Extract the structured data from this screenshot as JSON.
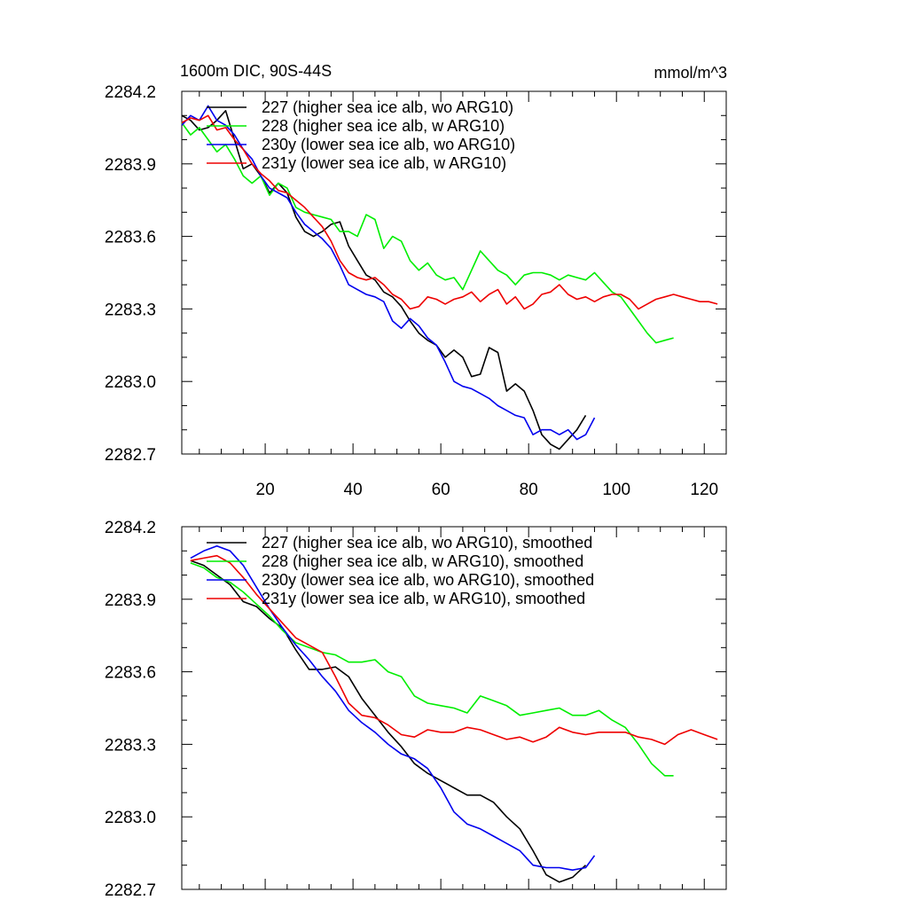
{
  "figure": {
    "title": "1600m DIC, 90S-44S",
    "units": "mmol/m^3"
  },
  "chart_data": [
    {
      "type": "line",
      "title": "1600m DIC, 90S-44S",
      "units": "mmol/m^3",
      "xlim": [
        1,
        125
      ],
      "ylim": [
        2282.7,
        2284.2
      ],
      "xticks": [
        20,
        40,
        60,
        80,
        100,
        120
      ],
      "xtick_labels": [
        "20",
        "40",
        "60",
        "80",
        "100",
        "120"
      ],
      "yticks": [
        2282.7,
        2283.0,
        2283.3,
        2283.6,
        2283.9,
        2284.2
      ],
      "ytick_labels": [
        "2282.7",
        "2283.0",
        "2283.3",
        "2283.6",
        "2283.9",
        "2284.2"
      ],
      "legend": "top-left",
      "series": [
        {
          "name": "227 (higher sea ice alb, wo ARG10)",
          "color": "#000000",
          "x": [
            1,
            3,
            5,
            7,
            9,
            11,
            13,
            15,
            17,
            19,
            21,
            23,
            25,
            27,
            29,
            31,
            33,
            35,
            37,
            39,
            41,
            43,
            45,
            47,
            49,
            51,
            53,
            55,
            57,
            59,
            61,
            63,
            65,
            67,
            69,
            71,
            73,
            75,
            77,
            79,
            81,
            83,
            85,
            87,
            89,
            91,
            93
          ],
          "y": [
            2284.1,
            2284.08,
            2284.04,
            2284.05,
            2284.08,
            2284.12,
            2284.0,
            2283.88,
            2283.9,
            2283.85,
            2283.78,
            2283.82,
            2283.78,
            2283.68,
            2283.62,
            2283.6,
            2283.62,
            2283.65,
            2283.66,
            2283.56,
            2283.5,
            2283.44,
            2283.42,
            2283.37,
            2283.35,
            2283.31,
            2283.25,
            2283.2,
            2283.17,
            2283.15,
            2283.1,
            2283.13,
            2283.1,
            2283.02,
            2283.03,
            2283.14,
            2283.12,
            2282.96,
            2282.99,
            2282.96,
            2282.88,
            2282.78,
            2282.74,
            2282.72,
            2282.76,
            2282.8,
            2282.86
          ]
        },
        {
          "name": "228 (higher sea ice alb, w ARG10)",
          "color": "#00ee00",
          "x": [
            1,
            3,
            5,
            7,
            9,
            11,
            13,
            15,
            17,
            19,
            21,
            23,
            25,
            27,
            29,
            31,
            33,
            35,
            37,
            39,
            41,
            43,
            45,
            47,
            49,
            51,
            53,
            55,
            57,
            59,
            61,
            63,
            65,
            67,
            69,
            71,
            73,
            75,
            77,
            79,
            81,
            83,
            85,
            87,
            89,
            91,
            93,
            95,
            97,
            99,
            101,
            103,
            105,
            107,
            109,
            111,
            113
          ],
          "y": [
            2284.07,
            2284.02,
            2284.05,
            2284.0,
            2283.95,
            2283.98,
            2283.92,
            2283.85,
            2283.82,
            2283.85,
            2283.77,
            2283.82,
            2283.8,
            2283.72,
            2283.7,
            2283.69,
            2283.68,
            2283.67,
            2283.62,
            2283.62,
            2283.6,
            2283.69,
            2283.67,
            2283.55,
            2283.6,
            2283.58,
            2283.5,
            2283.46,
            2283.49,
            2283.44,
            2283.42,
            2283.43,
            2283.38,
            2283.46,
            2283.54,
            2283.5,
            2283.46,
            2283.44,
            2283.4,
            2283.44,
            2283.45,
            2283.45,
            2283.44,
            2283.42,
            2283.44,
            2283.43,
            2283.42,
            2283.45,
            2283.41,
            2283.37,
            2283.35,
            2283.3,
            2283.25,
            2283.2,
            2283.16,
            2283.17,
            2283.18
          ]
        },
        {
          "name": "230y (lower sea ice alb, wo ARG10)",
          "color": "#0000ee",
          "x": [
            1,
            3,
            5,
            7,
            9,
            11,
            13,
            15,
            17,
            19,
            21,
            23,
            25,
            27,
            29,
            31,
            33,
            35,
            37,
            39,
            41,
            43,
            45,
            47,
            49,
            51,
            53,
            55,
            57,
            59,
            61,
            63,
            65,
            67,
            69,
            71,
            73,
            75,
            77,
            79,
            81,
            83,
            85,
            87,
            89,
            91,
            93,
            95
          ],
          "y": [
            2284.06,
            2284.1,
            2284.08,
            2284.14,
            2284.08,
            2284.06,
            2284.02,
            2283.96,
            2283.92,
            2283.85,
            2283.8,
            2283.78,
            2283.76,
            2283.7,
            2283.65,
            2283.62,
            2283.59,
            2283.55,
            2283.48,
            2283.4,
            2283.38,
            2283.36,
            2283.35,
            2283.33,
            2283.25,
            2283.22,
            2283.26,
            2283.23,
            2283.18,
            2283.15,
            2283.08,
            2283.0,
            2282.98,
            2282.97,
            2282.95,
            2282.93,
            2282.9,
            2282.88,
            2282.86,
            2282.85,
            2282.78,
            2282.8,
            2282.8,
            2282.78,
            2282.8,
            2282.76,
            2282.78,
            2282.85
          ]
        },
        {
          "name": "231y (lower sea ice alb, w ARG10)",
          "color": "#ee0000",
          "x": [
            1,
            3,
            5,
            7,
            9,
            11,
            13,
            15,
            17,
            19,
            21,
            23,
            25,
            27,
            29,
            31,
            33,
            35,
            37,
            39,
            41,
            43,
            45,
            47,
            49,
            51,
            53,
            55,
            57,
            59,
            61,
            63,
            65,
            67,
            69,
            71,
            73,
            75,
            77,
            79,
            81,
            83,
            85,
            87,
            89,
            91,
            93,
            95,
            97,
            99,
            101,
            103,
            105,
            107,
            109,
            111,
            113,
            115,
            117,
            119,
            121,
            123
          ],
          "y": [
            2284.07,
            2284.09,
            2284.08,
            2284.1,
            2284.04,
            2284.05,
            2284.0,
            2283.96,
            2283.9,
            2283.86,
            2283.83,
            2283.79,
            2283.78,
            2283.75,
            2283.72,
            2283.68,
            2283.64,
            2283.58,
            2283.5,
            2283.45,
            2283.43,
            2283.42,
            2283.43,
            2283.4,
            2283.36,
            2283.34,
            2283.3,
            2283.31,
            2283.35,
            2283.34,
            2283.32,
            2283.34,
            2283.35,
            2283.37,
            2283.33,
            2283.36,
            2283.38,
            2283.32,
            2283.35,
            2283.3,
            2283.32,
            2283.36,
            2283.37,
            2283.4,
            2283.36,
            2283.34,
            2283.35,
            2283.33,
            2283.35,
            2283.36,
            2283.36,
            2283.34,
            2283.3,
            2283.32,
            2283.34,
            2283.35,
            2283.36,
            2283.35,
            2283.34,
            2283.33,
            2283.33,
            2283.32
          ]
        }
      ]
    },
    {
      "type": "line",
      "xlim": [
        1,
        125
      ],
      "ylim": [
        2282.7,
        2284.2
      ],
      "yticks": [
        2282.7,
        2283.0,
        2283.3,
        2283.6,
        2283.9,
        2284.2
      ],
      "ytick_labels": [
        "2282.7",
        "2283.0",
        "2283.3",
        "2283.6",
        "2283.9",
        "2284.2"
      ],
      "xticks": [
        20,
        40,
        60,
        80,
        100,
        120
      ],
      "xtick_labels": [],
      "legend": "top-left",
      "series": [
        {
          "name": "227 (higher sea ice alb, wo ARG10), smoothed",
          "color": "#000000",
          "x": [
            3,
            6,
            9,
            12,
            15,
            18,
            21,
            24,
            27,
            30,
            33,
            36,
            39,
            42,
            45,
            48,
            51,
            54,
            57,
            60,
            63,
            66,
            69,
            72,
            75,
            78,
            81,
            84,
            87,
            90,
            93
          ],
          "y": [
            2284.06,
            2284.04,
            2284.0,
            2283.96,
            2283.89,
            2283.87,
            2283.82,
            2283.78,
            2283.69,
            2283.61,
            2283.61,
            2283.62,
            2283.58,
            2283.49,
            2283.42,
            2283.35,
            2283.29,
            2283.22,
            2283.18,
            2283.15,
            2283.12,
            2283.09,
            2283.09,
            2283.06,
            2283.0,
            2282.95,
            2282.86,
            2282.76,
            2282.73,
            2282.75,
            2282.8
          ]
        },
        {
          "name": "228 (higher sea ice alb, w ARG10), smoothed",
          "color": "#00ee00",
          "x": [
            3,
            6,
            9,
            12,
            15,
            18,
            21,
            24,
            27,
            30,
            33,
            36,
            39,
            42,
            45,
            48,
            51,
            54,
            57,
            60,
            63,
            66,
            69,
            72,
            75,
            78,
            81,
            84,
            87,
            90,
            93,
            96,
            99,
            102,
            105,
            108,
            111,
            113
          ],
          "y": [
            2284.05,
            2284.03,
            2283.99,
            2283.97,
            2283.93,
            2283.88,
            2283.83,
            2283.77,
            2283.72,
            2283.7,
            2283.68,
            2283.67,
            2283.64,
            2283.64,
            2283.65,
            2283.6,
            2283.58,
            2283.5,
            2283.47,
            2283.46,
            2283.45,
            2283.43,
            2283.5,
            2283.48,
            2283.46,
            2283.42,
            2283.43,
            2283.44,
            2283.45,
            2283.42,
            2283.42,
            2283.44,
            2283.4,
            2283.37,
            2283.3,
            2283.22,
            2283.17,
            2283.17
          ]
        },
        {
          "name": "230y (lower sea ice alb, wo ARG10), smoothed",
          "color": "#0000ee",
          "x": [
            3,
            6,
            9,
            12,
            15,
            18,
            21,
            24,
            27,
            30,
            33,
            36,
            39,
            42,
            45,
            48,
            51,
            54,
            57,
            60,
            63,
            66,
            69,
            72,
            75,
            78,
            81,
            84,
            87,
            90,
            93,
            95
          ],
          "y": [
            2284.07,
            2284.1,
            2284.12,
            2284.1,
            2284.04,
            2283.95,
            2283.86,
            2283.78,
            2283.71,
            2283.65,
            2283.58,
            2283.52,
            2283.44,
            2283.39,
            2283.35,
            2283.3,
            2283.26,
            2283.24,
            2283.2,
            2283.12,
            2283.02,
            2282.97,
            2282.95,
            2282.92,
            2282.89,
            2282.86,
            2282.8,
            2282.79,
            2282.79,
            2282.78,
            2282.79,
            2282.84
          ]
        },
        {
          "name": "231y (lower sea ice alb, w ARG10), smoothed",
          "color": "#ee0000",
          "x": [
            3,
            6,
            9,
            12,
            15,
            18,
            21,
            24,
            27,
            30,
            33,
            36,
            39,
            42,
            45,
            48,
            51,
            54,
            57,
            60,
            63,
            66,
            69,
            72,
            75,
            78,
            81,
            84,
            87,
            90,
            93,
            96,
            99,
            102,
            105,
            108,
            111,
            114,
            117,
            120,
            123
          ],
          "y": [
            2284.06,
            2284.07,
            2284.08,
            2284.05,
            2283.99,
            2283.92,
            2283.86,
            2283.8,
            2283.74,
            2283.71,
            2283.68,
            2283.58,
            2283.47,
            2283.42,
            2283.41,
            2283.38,
            2283.34,
            2283.33,
            2283.36,
            2283.35,
            2283.35,
            2283.37,
            2283.36,
            2283.34,
            2283.32,
            2283.33,
            2283.31,
            2283.33,
            2283.37,
            2283.35,
            2283.34,
            2283.35,
            2283.35,
            2283.35,
            2283.33,
            2283.32,
            2283.3,
            2283.34,
            2283.36,
            2283.34,
            2283.32
          ]
        }
      ]
    }
  ]
}
